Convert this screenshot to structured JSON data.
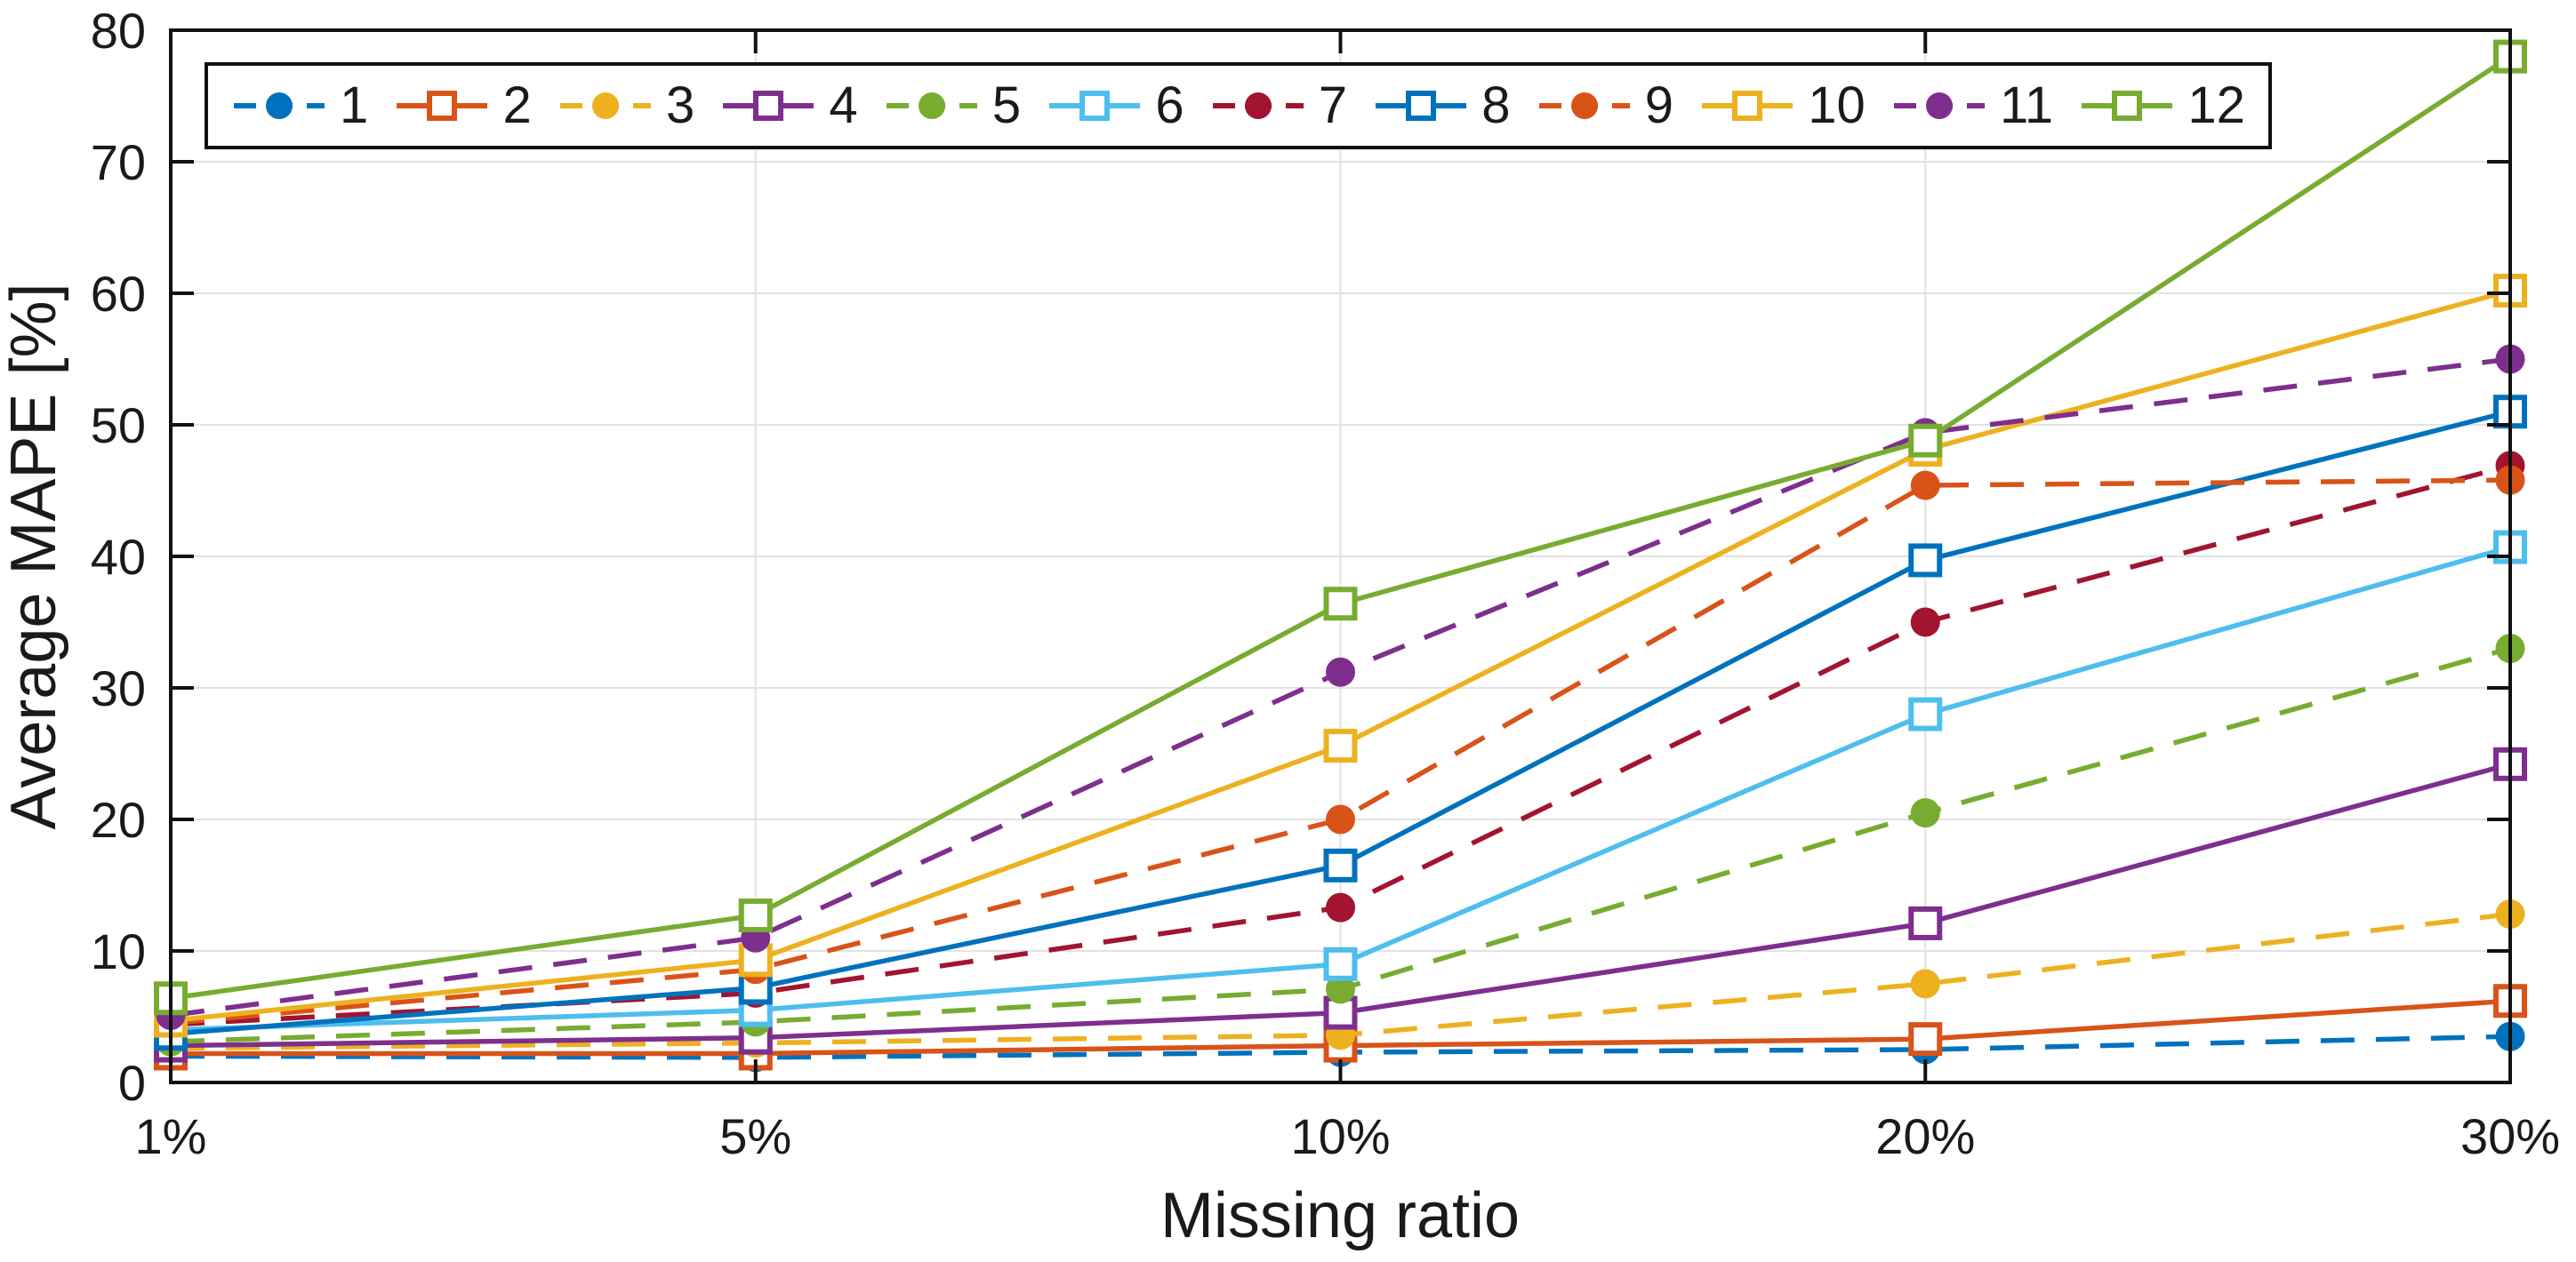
{
  "chart_data": {
    "type": "line",
    "title": "",
    "xlabel": "Missing ratio",
    "ylabel": "Average MAPE [%]",
    "categories": [
      "1%",
      "5%",
      "10%",
      "20%",
      "30%"
    ],
    "y_ticks": [
      0,
      10,
      20,
      30,
      40,
      50,
      60,
      70,
      80
    ],
    "ylim": [
      0,
      80
    ],
    "grid": true,
    "legend_position": "top-inside-row",
    "axis_color": "#111111",
    "grid_color": "#e2e2e2",
    "tick_label_color": "#1a1a1a",
    "series": [
      {
        "name": "1",
        "color": "#0072BD",
        "line": "dashed",
        "marker": "filled-circle",
        "values": [
          2.0,
          1.9,
          2.3,
          2.5,
          3.5
        ]
      },
      {
        "name": "2",
        "color": "#D95319",
        "line": "solid",
        "marker": "open-square",
        "values": [
          2.2,
          2.2,
          2.8,
          3.3,
          6.2
        ]
      },
      {
        "name": "3",
        "color": "#EDB120",
        "line": "dashed",
        "marker": "filled-circle",
        "values": [
          2.6,
          3.0,
          3.6,
          7.5,
          12.8
        ]
      },
      {
        "name": "4",
        "color": "#7E2F8E",
        "line": "solid",
        "marker": "open-square",
        "values": [
          2.8,
          3.4,
          5.3,
          12.1,
          24.2
        ]
      },
      {
        "name": "5",
        "color": "#77AC30",
        "line": "dashed",
        "marker": "filled-circle",
        "values": [
          3.1,
          4.6,
          7.1,
          20.5,
          33.0
        ]
      },
      {
        "name": "6",
        "color": "#4DBEEE",
        "line": "solid",
        "marker": "open-square",
        "values": [
          4.0,
          5.5,
          9.0,
          28.0,
          40.7
        ]
      },
      {
        "name": "7",
        "color": "#A2142F",
        "line": "dashed",
        "marker": "filled-circle",
        "values": [
          4.4,
          6.8,
          13.3,
          35.0,
          46.9
        ]
      },
      {
        "name": "8",
        "color": "#0072BD",
        "line": "solid",
        "marker": "open-square",
        "values": [
          3.7,
          7.2,
          16.5,
          39.7,
          51.0
        ]
      },
      {
        "name": "9",
        "color": "#D95319",
        "line": "dashed",
        "marker": "filled-circle",
        "values": [
          4.5,
          8.6,
          20.0,
          45.4,
          45.8
        ]
      },
      {
        "name": "10",
        "color": "#EDB120",
        "line": "solid",
        "marker": "open-square",
        "values": [
          4.7,
          9.3,
          25.6,
          48.1,
          60.2
        ]
      },
      {
        "name": "11",
        "color": "#7E2F8E",
        "line": "dashed",
        "marker": "filled-circle",
        "values": [
          5.1,
          11.0,
          31.2,
          49.4,
          55.0
        ]
      },
      {
        "name": "12",
        "color": "#77AC30",
        "line": "solid",
        "marker": "open-square",
        "values": [
          6.4,
          12.7,
          36.4,
          48.8,
          78.0
        ]
      }
    ]
  }
}
